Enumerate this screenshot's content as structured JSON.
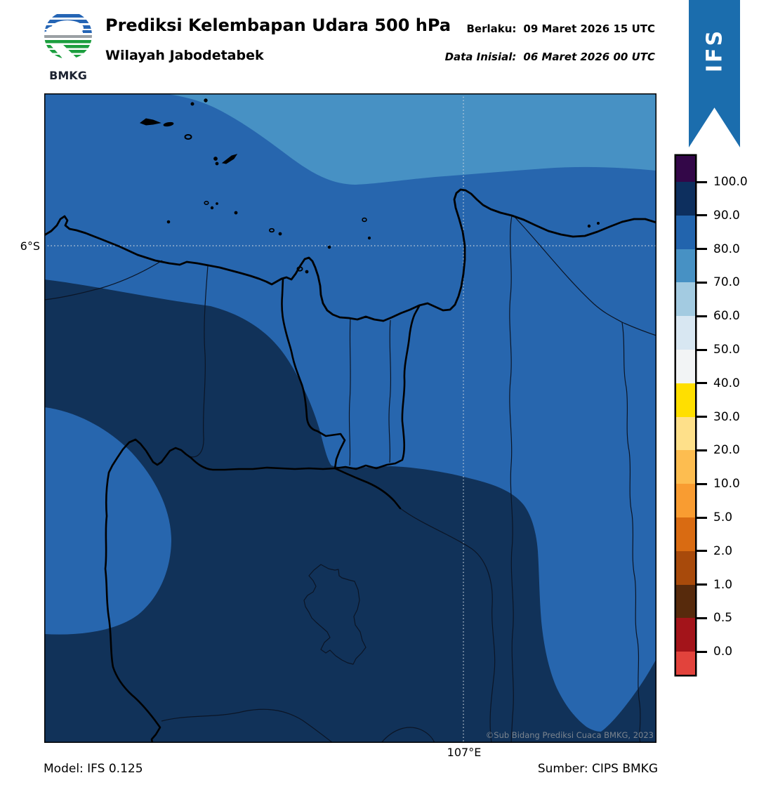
{
  "header": {
    "logo_text": "BMKG",
    "title": "Prediksi Kelembapan Udara 500 hPa",
    "subtitle": "Wilayah Jabodetabek",
    "valid_label": "Berlaku:",
    "valid_value": "09 Maret 2026 15 UTC",
    "init_label": "Data Inisial:",
    "init_value": "06 Maret 2026 00 UTC",
    "ribbon_label": "IFS",
    "ribbon_color": "#1b6dad"
  },
  "map": {
    "y_axis_label": "6°S",
    "x_axis_label": "107°E",
    "watermark": "©Sub Bidang Prediksi Cuaca BMKG, 2023",
    "colors": {
      "sea_80_90": "#2766ae",
      "band_70_80": "#4791c4",
      "high_90_100": "#113259",
      "grid": "#cdd6de",
      "coast": "#000000",
      "admin_thin": "#0b1526"
    }
  },
  "colorbar": {
    "labels": [
      "100.0",
      "90.0",
      "80.0",
      "70.0",
      "60.0",
      "50.0",
      "40.0",
      "30.0",
      "20.0",
      "10.0",
      "5.0",
      "2.0",
      "1.0",
      "0.5",
      "0.0"
    ],
    "colors": [
      "#330748",
      "#0d2f5e",
      "#2264ad",
      "#4791c4",
      "#a3cbe1",
      "#d8e7f2",
      "#f2f4f5",
      "#ffdf00",
      "#fee08a",
      "#fdbd50",
      "#f99c31",
      "#d96b12",
      "#a84a0b",
      "#572a0c",
      "#a3141a",
      "#e2433c"
    ]
  },
  "footer": {
    "model": "Model: IFS 0.125",
    "source": "Sumber: CIPS BMKG"
  }
}
